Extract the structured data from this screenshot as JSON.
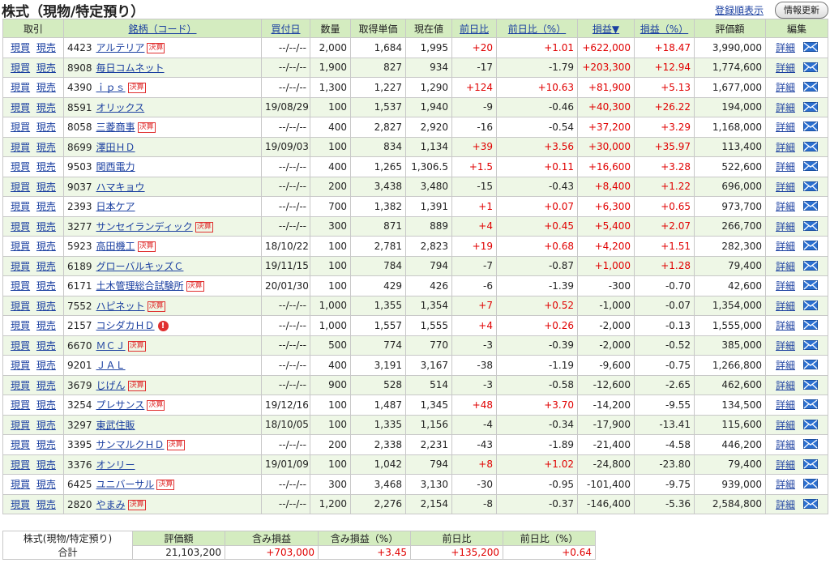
{
  "header": {
    "title": "株式（現物/特定預り）",
    "order_link": "登録順表示",
    "refresh_button": "情報更新"
  },
  "table": {
    "columns": [
      {
        "label": "取引",
        "link": false
      },
      {
        "label": "銘柄（コード）",
        "link": true
      },
      {
        "label": "買付日",
        "link": true
      },
      {
        "label": "数量",
        "link": false
      },
      {
        "label": "取得単価",
        "link": false
      },
      {
        "label": "現在値",
        "link": false
      },
      {
        "label": "前日比",
        "link": true
      },
      {
        "label": "前日比（%）",
        "link": true
      },
      {
        "label": "損益▼",
        "link": true
      },
      {
        "label": "損益（%）",
        "link": true
      },
      {
        "label": "評価額",
        "link": false
      },
      {
        "label": "編集",
        "link": false
      }
    ],
    "actions": {
      "buy": "現買",
      "sell": "現売",
      "detail": "詳細"
    },
    "rows": [
      {
        "code": "4423",
        "name": "アルテリア",
        "badge": "決算",
        "date": "--/--/--",
        "qty": "2,000",
        "cost": "1,684",
        "price": "1,995",
        "chg": "+20",
        "chg_pct": "+1.01",
        "pl": "+622,000",
        "pl_pct": "+18.47",
        "value": "3,990,000"
      },
      {
        "code": "8908",
        "name": "毎日コムネット",
        "date": "--/--/--",
        "qty": "1,900",
        "cost": "827",
        "price": "934",
        "chg": "-17",
        "chg_pct": "-1.79",
        "pl": "+203,300",
        "pl_pct": "+12.94",
        "value": "1,774,600"
      },
      {
        "code": "4390",
        "name": "ｉｐｓ",
        "badge": "決算",
        "date": "--/--/--",
        "qty": "1,300",
        "cost": "1,227",
        "price": "1,290",
        "chg": "+124",
        "chg_pct": "+10.63",
        "pl": "+81,900",
        "pl_pct": "+5.13",
        "value": "1,677,000"
      },
      {
        "code": "8591",
        "name": "オリックス",
        "date": "19/08/29",
        "qty": "100",
        "cost": "1,537",
        "price": "1,940",
        "chg": "-9",
        "chg_pct": "-0.46",
        "pl": "+40,300",
        "pl_pct": "+26.22",
        "value": "194,000"
      },
      {
        "code": "8058",
        "name": "三菱商事",
        "badge": "決算",
        "date": "--/--/--",
        "qty": "400",
        "cost": "2,827",
        "price": "2,920",
        "chg": "-16",
        "chg_pct": "-0.54",
        "pl": "+37,200",
        "pl_pct": "+3.29",
        "value": "1,168,000"
      },
      {
        "code": "8699",
        "name": "澤田ＨＤ",
        "date": "19/09/03",
        "qty": "100",
        "cost": "834",
        "price": "1,134",
        "chg": "+39",
        "chg_pct": "+3.56",
        "pl": "+30,000",
        "pl_pct": "+35.97",
        "value": "113,400"
      },
      {
        "code": "9503",
        "name": "関西電力",
        "date": "--/--/--",
        "qty": "400",
        "cost": "1,265",
        "price": "1,306.5",
        "chg": "+1.5",
        "chg_pct": "+0.11",
        "pl": "+16,600",
        "pl_pct": "+3.28",
        "value": "522,600"
      },
      {
        "code": "9037",
        "name": "ハマキョウ",
        "date": "--/--/--",
        "qty": "200",
        "cost": "3,438",
        "price": "3,480",
        "chg": "-15",
        "chg_pct": "-0.43",
        "pl": "+8,400",
        "pl_pct": "+1.22",
        "value": "696,000"
      },
      {
        "code": "2393",
        "name": "日本ケア",
        "date": "--/--/--",
        "qty": "700",
        "cost": "1,382",
        "price": "1,391",
        "chg": "+1",
        "chg_pct": "+0.07",
        "pl": "+6,300",
        "pl_pct": "+0.65",
        "value": "973,700"
      },
      {
        "code": "3277",
        "name": "サンセイランディック",
        "badge": "決算",
        "date": "--/--/--",
        "qty": "300",
        "cost": "871",
        "price": "889",
        "chg": "+4",
        "chg_pct": "+0.45",
        "pl": "+5,400",
        "pl_pct": "+2.07",
        "value": "266,700"
      },
      {
        "code": "5923",
        "name": "高田機工",
        "badge": "決算",
        "date": "18/10/22",
        "qty": "100",
        "cost": "2,781",
        "price": "2,823",
        "chg": "+19",
        "chg_pct": "+0.68",
        "pl": "+4,200",
        "pl_pct": "+1.51",
        "value": "282,300"
      },
      {
        "code": "6189",
        "name": "グローバルキッズＣ",
        "date": "19/11/15",
        "qty": "100",
        "cost": "784",
        "price": "794",
        "chg": "-7",
        "chg_pct": "-0.87",
        "pl": "+1,000",
        "pl_pct": "+1.28",
        "value": "79,400"
      },
      {
        "code": "6171",
        "name": "土木管理総合試験所",
        "badge": "決算",
        "date": "20/01/30",
        "qty": "100",
        "cost": "429",
        "price": "426",
        "chg": "-6",
        "chg_pct": "-1.39",
        "pl": "-300",
        "pl_pct": "-0.70",
        "value": "42,600"
      },
      {
        "code": "7552",
        "name": "ハピネット",
        "badge": "決算",
        "date": "--/--/--",
        "qty": "1,000",
        "cost": "1,355",
        "price": "1,354",
        "chg": "+7",
        "chg_pct": "+0.52",
        "pl": "-1,000",
        "pl_pct": "-0.07",
        "value": "1,354,000"
      },
      {
        "code": "2157",
        "name": "コシダカＨＤ",
        "badge": "!",
        "date": "--/--/--",
        "qty": "1,000",
        "cost": "1,557",
        "price": "1,555",
        "chg": "+4",
        "chg_pct": "+0.26",
        "pl": "-2,000",
        "pl_pct": "-0.13",
        "value": "1,555,000"
      },
      {
        "code": "6670",
        "name": "ＭＣＪ",
        "badge": "決算",
        "date": "--/--/--",
        "qty": "500",
        "cost": "774",
        "price": "770",
        "chg": "-3",
        "chg_pct": "-0.39",
        "pl": "-2,000",
        "pl_pct": "-0.52",
        "value": "385,000"
      },
      {
        "code": "9201",
        "name": "ＪＡＬ",
        "date": "--/--/--",
        "qty": "400",
        "cost": "3,191",
        "price": "3,167",
        "chg": "-38",
        "chg_pct": "-1.19",
        "pl": "-9,600",
        "pl_pct": "-0.75",
        "value": "1,266,800"
      },
      {
        "code": "3679",
        "name": "じげん",
        "badge": "決算",
        "date": "--/--/--",
        "qty": "900",
        "cost": "528",
        "price": "514",
        "chg": "-3",
        "chg_pct": "-0.58",
        "pl": "-12,600",
        "pl_pct": "-2.65",
        "value": "462,600"
      },
      {
        "code": "3254",
        "name": "プレサンス",
        "badge": "決算",
        "date": "19/12/16",
        "qty": "100",
        "cost": "1,487",
        "price": "1,345",
        "chg": "+48",
        "chg_pct": "+3.70",
        "pl": "-14,200",
        "pl_pct": "-9.55",
        "value": "134,500"
      },
      {
        "code": "3297",
        "name": "東武住販",
        "date": "18/10/05",
        "qty": "100",
        "cost": "1,335",
        "price": "1,156",
        "chg": "-4",
        "chg_pct": "-0.34",
        "pl": "-17,900",
        "pl_pct": "-13.41",
        "value": "115,600"
      },
      {
        "code": "3395",
        "name": "サンマルクＨＤ",
        "badge": "決算",
        "date": "--/--/--",
        "qty": "200",
        "cost": "2,338",
        "price": "2,231",
        "chg": "-43",
        "chg_pct": "-1.89",
        "pl": "-21,400",
        "pl_pct": "-4.58",
        "value": "446,200"
      },
      {
        "code": "3376",
        "name": "オンリー",
        "date": "19/01/09",
        "qty": "100",
        "cost": "1,042",
        "price": "794",
        "chg": "+8",
        "chg_pct": "+1.02",
        "pl": "-24,800",
        "pl_pct": "-23.80",
        "value": "79,400"
      },
      {
        "code": "6425",
        "name": "ユニバーサル",
        "badge": "決算",
        "date": "--/--/--",
        "qty": "300",
        "cost": "3,468",
        "price": "3,130",
        "chg": "-30",
        "chg_pct": "-0.95",
        "pl": "-101,400",
        "pl_pct": "-9.75",
        "value": "939,000"
      },
      {
        "code": "2820",
        "name": "やまみ",
        "badge": "決算",
        "date": "--/--/--",
        "qty": "1,200",
        "cost": "2,276",
        "price": "2,154",
        "chg": "-8",
        "chg_pct": "-0.37",
        "pl": "-146,400",
        "pl_pct": "-5.36",
        "value": "2,584,800"
      }
    ]
  },
  "summary": {
    "label": "株式(現物/特定預り)",
    "sublabel": "合計",
    "columns": [
      "評価額",
      "含み損益",
      "含み損益（%）",
      "前日比",
      "前日比（%）"
    ],
    "values": [
      "21,103,200",
      "+703,000",
      "+3.45",
      "+135,200",
      "+0.64"
    ]
  }
}
